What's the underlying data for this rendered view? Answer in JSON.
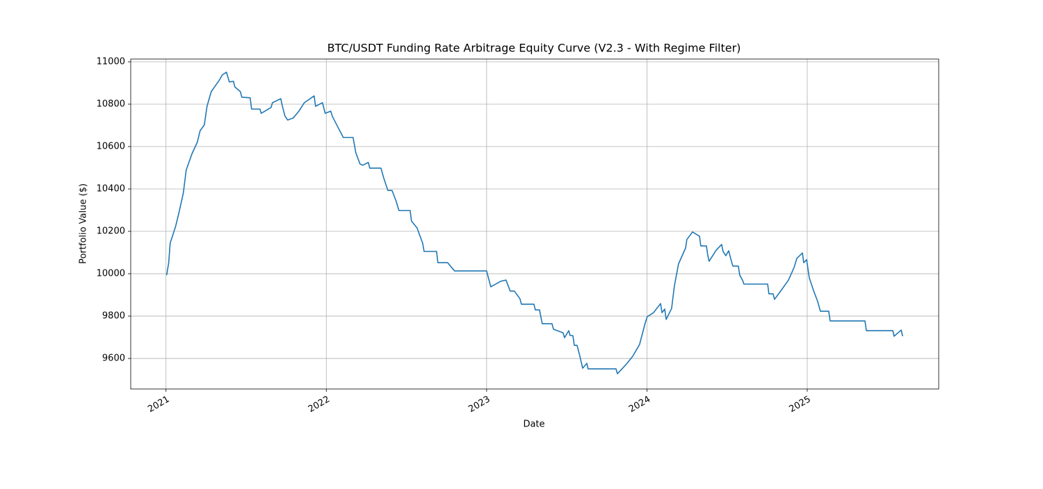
{
  "chart_data": {
    "type": "line",
    "title": "BTC/USDT Funding Rate Arbitrage Equity Curve (V2.3 - With Regime Filter)",
    "x_label": "Date",
    "y_label": "Portfolio Value ($)",
    "color": "#1f77b4",
    "grid": true,
    "xlim": [
      2020.78,
      2025.82
    ],
    "xticks": [
      2021,
      2022,
      2023,
      2024,
      2025
    ],
    "ylim": [
      9456,
      11013
    ],
    "yticks": [
      9600,
      9800,
      10000,
      10200,
      10400,
      10600,
      10800,
      11000
    ],
    "x": [
      2021.004,
      2021.017,
      2021.026,
      2021.061,
      2021.082,
      2021.108,
      2021.126,
      2021.161,
      2021.195,
      2021.213,
      2021.239,
      2021.256,
      2021.282,
      2021.334,
      2021.351,
      2021.377,
      2021.395,
      2021.421,
      2021.429,
      2021.464,
      2021.473,
      2021.525,
      2021.534,
      2021.586,
      2021.594,
      2021.655,
      2021.664,
      2021.716,
      2021.725,
      2021.742,
      2021.759,
      2021.794,
      2021.829,
      2021.863,
      2021.907,
      2021.924,
      2021.933,
      2021.976,
      2021.993,
      2022.028,
      2022.037,
      2022.072,
      2022.106,
      2022.167,
      2022.184,
      2022.21,
      2022.228,
      2022.262,
      2022.271,
      2022.341,
      2022.358,
      2022.384,
      2022.41,
      2022.436,
      2022.453,
      2022.523,
      2022.531,
      2022.566,
      2022.601,
      2022.61,
      2022.688,
      2022.696,
      2022.757,
      2022.8,
      2023.0,
      2023.017,
      2023.026,
      2023.087,
      2023.121,
      2023.147,
      2023.173,
      2023.208,
      2023.217,
      2023.295,
      2023.304,
      2023.33,
      2023.347,
      2023.408,
      2023.417,
      2023.477,
      2023.486,
      2023.512,
      2023.521,
      2023.538,
      2023.547,
      2023.564,
      2023.581,
      2023.599,
      2023.625,
      2023.633,
      2023.807,
      2023.816,
      2023.868,
      2023.911,
      2023.954,
      2023.989,
      2024.002,
      2024.041,
      2024.085,
      2024.094,
      2024.111,
      2024.12,
      2024.154,
      2024.171,
      2024.197,
      2024.241,
      2024.249,
      2024.284,
      2024.328,
      2024.336,
      2024.371,
      2024.38,
      2024.388,
      2024.432,
      2024.466,
      2024.475,
      2024.492,
      2024.51,
      2024.527,
      2024.536,
      2024.57,
      2024.579,
      2024.596,
      2024.605,
      2024.753,
      2024.761,
      2024.787,
      2024.796,
      2024.831,
      2024.883,
      2024.918,
      2024.935,
      2024.97,
      2024.978,
      2024.996,
      2025.013,
      2025.039,
      2025.065,
      2025.082,
      2025.134,
      2025.143,
      2025.36,
      2025.369,
      2025.534,
      2025.542,
      2025.586,
      2025.595
    ],
    "values": [
      9993,
      10052,
      10144,
      10226,
      10292,
      10380,
      10489,
      10564,
      10620,
      10675,
      10702,
      10790,
      10859,
      10915,
      10938,
      10951,
      10905,
      10908,
      10882,
      10859,
      10833,
      10830,
      10777,
      10777,
      10757,
      10784,
      10807,
      10826,
      10794,
      10744,
      10725,
      10735,
      10767,
      10807,
      10830,
      10839,
      10790,
      10807,
      10757,
      10767,
      10744,
      10692,
      10643,
      10643,
      10571,
      10518,
      10512,
      10525,
      10498,
      10498,
      10452,
      10393,
      10393,
      10341,
      10298,
      10298,
      10249,
      10216,
      10144,
      10105,
      10105,
      10052,
      10052,
      10013,
      10013,
      9964,
      9938,
      9964,
      9970,
      9918,
      9918,
      9882,
      9856,
      9856,
      9829,
      9829,
      9764,
      9764,
      9738,
      9721,
      9698,
      9731,
      9708,
      9708,
      9662,
      9662,
      9613,
      9554,
      9577,
      9551,
      9551,
      9528,
      9570,
      9610,
      9666,
      9767,
      9797,
      9816,
      9859,
      9816,
      9833,
      9784,
      9836,
      9941,
      10046,
      10121,
      10161,
      10197,
      10177,
      10131,
      10131,
      10085,
      10059,
      10111,
      10138,
      10105,
      10085,
      10108,
      10059,
      10036,
      10036,
      9993,
      9970,
      9951,
      9951,
      9905,
      9905,
      9879,
      9915,
      9970,
      10030,
      10072,
      10098,
      10052,
      10066,
      9980,
      9921,
      9869,
      9823,
      9823,
      9777,
      9777,
      9731,
      9731,
      9705,
      9734,
      9705
    ]
  }
}
